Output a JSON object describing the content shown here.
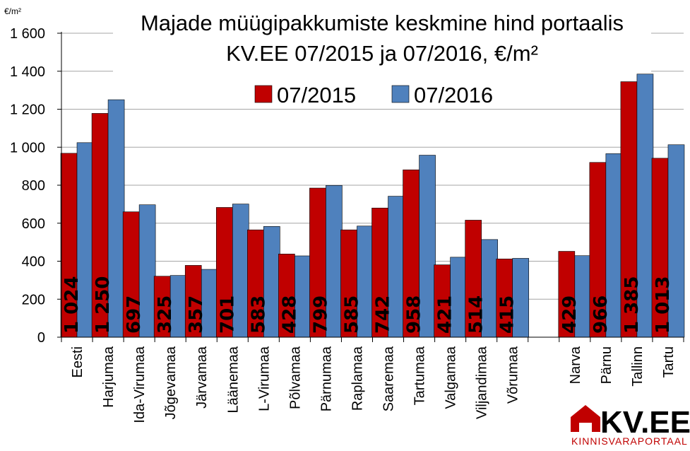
{
  "chart_data": {
    "type": "bar",
    "title_line1": "Majade müügipakkumiste keskmine hind portaalis",
    "title_line2": "KV.EE 07/2015 ja 07/2016, €/m²",
    "ylabel": "€/m²",
    "ylim": [
      0,
      1600
    ],
    "yticks": [
      "0",
      "200",
      "400",
      "600",
      "800",
      "1 000",
      "1 200",
      "1 400",
      "1 600"
    ],
    "ytick_values": [
      0,
      200,
      400,
      600,
      800,
      1000,
      1200,
      1400,
      1600
    ],
    "grid": true,
    "legend_position": "top",
    "categories": [
      "Eesti",
      "Harjumaa",
      "Ida-Virumaa",
      "Jõgevamaa",
      "Järvamaa",
      "Läänemaa",
      "L-Virumaa",
      "Põlvamaa",
      "Pärnumaa",
      "Raplamaa",
      "Saaremaa",
      "Tartumaa",
      "Valgamaa",
      "Viljandimaa",
      "Võrumaa",
      "",
      "Narva",
      "Pärnu",
      "Tallinn",
      "Tartu"
    ],
    "series": [
      {
        "name": "07/2015",
        "color": "#c00000",
        "values": [
          968,
          1178,
          660,
          321,
          378,
          683,
          565,
          438,
          785,
          565,
          680,
          881,
          381,
          616,
          412,
          null,
          452,
          920,
          1345,
          942
        ]
      },
      {
        "name": "07/2016",
        "color": "#4f81bd",
        "values": [
          1024,
          1250,
          697,
          325,
          357,
          701,
          583,
          428,
          799,
          585,
          742,
          958,
          421,
          514,
          415,
          null,
          429,
          966,
          1385,
          1013
        ]
      }
    ],
    "data_labels": [
      "1 024",
      "1 250",
      "697",
      "325",
      "357",
      "701",
      "583",
      "428",
      "799",
      "585",
      "742",
      "958",
      "421",
      "514",
      "415",
      "",
      "429",
      "966",
      "1 385",
      "1 013"
    ]
  },
  "logo": {
    "text": "KV.EE",
    "subtitle": "KINNISVARAPORTAAL",
    "color": "#c00000"
  }
}
